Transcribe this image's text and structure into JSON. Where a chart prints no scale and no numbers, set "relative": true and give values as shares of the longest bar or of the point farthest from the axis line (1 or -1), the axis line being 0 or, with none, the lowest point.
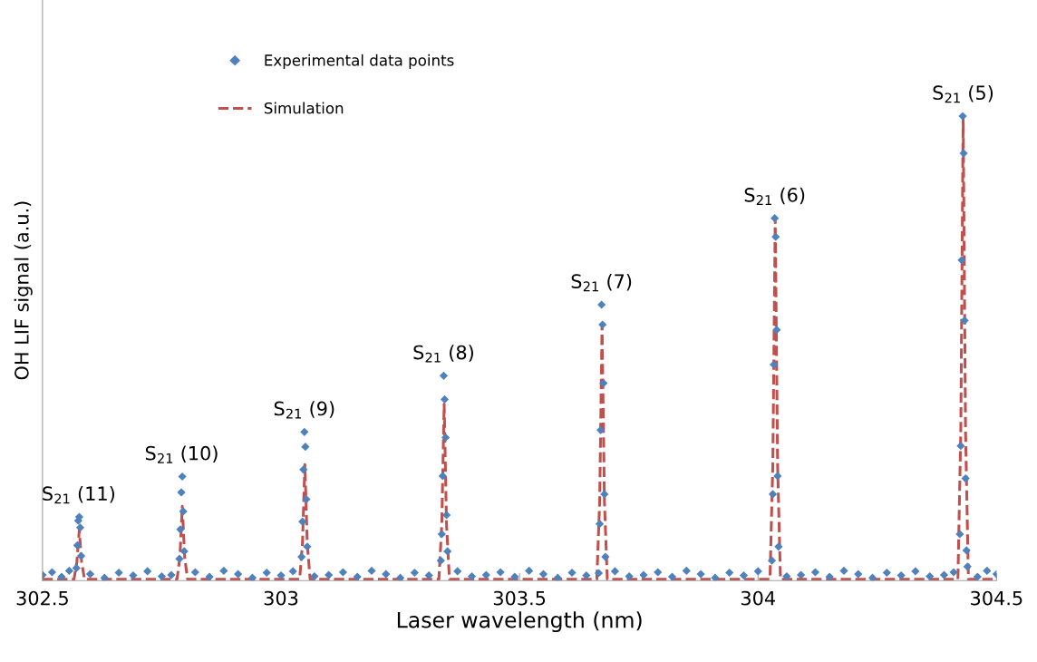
{
  "chart_data": {
    "type": "scatter",
    "relative": true,
    "xlabel": "Laser wavelength (nm)",
    "ylabel": "OH LIF signal (a.u.)",
    "xlim": [
      302.5,
      304.5
    ],
    "xticks": [
      302.5,
      303,
      303.5,
      304,
      304.5
    ],
    "legend": "top left",
    "grid": false,
    "series": [
      {
        "name": "Experimental data points",
        "marker": "diamond",
        "color": "#4f81bd",
        "x": [
          302.5,
          302.52,
          302.54,
          302.556,
          302.571,
          302.573,
          302.575,
          302.577,
          302.579,
          302.581,
          302.6,
          302.63,
          302.66,
          302.69,
          302.72,
          302.75,
          302.77,
          302.787,
          302.789,
          302.791,
          302.793,
          302.795,
          302.797,
          302.82,
          302.85,
          302.88,
          302.91,
          302.94,
          302.97,
          303.0,
          303.025,
          303.043,
          303.045,
          303.047,
          303.049,
          303.051,
          303.053,
          303.055,
          303.07,
          303.1,
          303.13,
          303.16,
          303.19,
          303.22,
          303.25,
          303.28,
          303.31,
          303.335,
          303.337,
          303.339,
          303.341,
          303.343,
          303.345,
          303.347,
          303.349,
          303.37,
          303.4,
          303.43,
          303.46,
          303.49,
          303.52,
          303.55,
          303.58,
          303.61,
          303.64,
          303.666,
          303.668,
          303.67,
          303.672,
          303.674,
          303.676,
          303.678,
          303.68,
          303.7,
          303.73,
          303.76,
          303.79,
          303.82,
          303.85,
          303.88,
          303.91,
          303.94,
          303.97,
          304.0,
          304.029,
          304.031,
          304.033,
          304.035,
          304.037,
          304.039,
          304.041,
          304.043,
          304.06,
          304.09,
          304.12,
          304.15,
          304.18,
          304.21,
          304.24,
          304.27,
          304.3,
          304.33,
          304.36,
          304.39,
          304.41,
          304.423,
          304.425,
          304.427,
          304.429,
          304.431,
          304.433,
          304.435,
          304.437,
          304.439,
          304.46,
          304.48,
          304.5
        ],
        "values": [
          0.012,
          0.018,
          0.008,
          0.021,
          0.027,
          0.076,
          0.129,
          0.137,
          0.114,
          0.053,
          0.014,
          0.006,
          0.017,
          0.011,
          0.02,
          0.009,
          0.012,
          0.047,
          0.11,
          0.19,
          0.224,
          0.149,
          0.063,
          0.018,
          0.008,
          0.021,
          0.014,
          0.006,
          0.017,
          0.011,
          0.02,
          0.051,
          0.127,
          0.239,
          0.32,
          0.288,
          0.175,
          0.073,
          0.009,
          0.012,
          0.018,
          0.008,
          0.021,
          0.014,
          0.006,
          0.017,
          0.011,
          0.043,
          0.1,
          0.225,
          0.441,
          0.39,
          0.308,
          0.141,
          0.063,
          0.02,
          0.009,
          0.012,
          0.018,
          0.008,
          0.021,
          0.014,
          0.006,
          0.017,
          0.011,
          0.016,
          0.122,
          0.324,
          0.594,
          0.551,
          0.425,
          0.186,
          0.051,
          0.02,
          0.009,
          0.012,
          0.018,
          0.008,
          0.021,
          0.014,
          0.006,
          0.017,
          0.011,
          0.02,
          0.043,
          0.186,
          0.465,
          0.78,
          0.74,
          0.54,
          0.225,
          0.073,
          0.009,
          0.012,
          0.018,
          0.008,
          0.021,
          0.014,
          0.006,
          0.017,
          0.011,
          0.02,
          0.009,
          0.012,
          0.018,
          0.1,
          0.29,
          0.69,
          1.0,
          0.92,
          0.56,
          0.22,
          0.065,
          0.03,
          0.008,
          0.021,
          0.014
        ]
      },
      {
        "name": "Simulation",
        "type": "line",
        "line_style": "dashed",
        "color": "#c0504d",
        "x": [
          302.5,
          302.566,
          302.572,
          302.577,
          302.582,
          302.588,
          302.782,
          302.788,
          302.793,
          302.798,
          302.804,
          303.039,
          303.045,
          303.05,
          303.055,
          303.061,
          303.331,
          303.337,
          303.342,
          303.347,
          303.353,
          303.662,
          303.668,
          303.673,
          303.678,
          303.684,
          304.025,
          304.031,
          304.036,
          304.041,
          304.047,
          304.419,
          304.425,
          304.43,
          304.435,
          304.441,
          304.5
        ],
        "values": [
          0.003,
          0.003,
          0.04,
          0.108,
          0.04,
          0.003,
          0.003,
          0.05,
          0.16,
          0.05,
          0.003,
          0.003,
          0.08,
          0.25,
          0.08,
          0.003,
          0.003,
          0.12,
          0.38,
          0.12,
          0.003,
          0.003,
          0.17,
          0.55,
          0.17,
          0.003,
          0.003,
          0.25,
          0.78,
          0.25,
          0.003,
          0.003,
          0.32,
          1.0,
          0.32,
          0.003,
          0.003
        ]
      }
    ],
    "annotations": [
      {
        "text": "S$_{21}$ (11)",
        "x": 302.576,
        "y": 0.137
      },
      {
        "text": "S$_{21}$ (10)",
        "x": 302.792,
        "y": 0.224
      },
      {
        "text": "S$_{21}$ (9)",
        "x": 303.049,
        "y": 0.32
      },
      {
        "text": "S$_{21}$ (8)",
        "x": 303.341,
        "y": 0.441
      },
      {
        "text": "S$_{21}$ (7)",
        "x": 303.672,
        "y": 0.594
      },
      {
        "text": "S$_{21}$ (6)",
        "x": 304.035,
        "y": 0.78
      },
      {
        "text": "S$_{21}$ (5)",
        "x": 304.43,
        "y": 1.0
      }
    ]
  }
}
